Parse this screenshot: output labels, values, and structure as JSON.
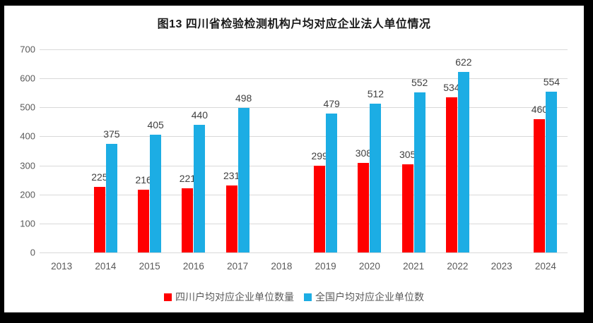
{
  "title": "图13 四川省检验检测机构户均对应企业法人单位情况",
  "chart_data": {
    "type": "bar",
    "title": "图13 四川省检验检测机构户均对应企业法人单位情况",
    "categories": [
      "2013",
      "2014",
      "2015",
      "2016",
      "2017",
      "2018",
      "2019",
      "2020",
      "2021",
      "2022",
      "2023",
      "2024"
    ],
    "series": [
      {
        "name": "四川户均对应企业单位数量",
        "color": "#ff0000",
        "values": [
          null,
          225,
          216,
          221,
          231,
          null,
          299,
          308,
          305,
          534,
          null,
          460
        ]
      },
      {
        "name": "全国户均对应企业单位数",
        "color": "#1cade4",
        "values": [
          null,
          375,
          405,
          440,
          498,
          null,
          479,
          512,
          552,
          622,
          null,
          554
        ]
      }
    ],
    "xlabel": "",
    "ylabel": "",
    "ylim": [
      0,
      700
    ],
    "yticks": [
      0,
      100,
      200,
      300,
      400,
      500,
      600,
      700
    ],
    "grid": true,
    "legend_position": "bottom",
    "data_labels": true
  },
  "colors": {
    "series1": "#ff0000",
    "series2": "#1cade4",
    "gridline": "#d9d9d9",
    "axis_text": "#595959",
    "data_label_text": "#404040",
    "frame": "#000000",
    "background": "#ffffff"
  }
}
